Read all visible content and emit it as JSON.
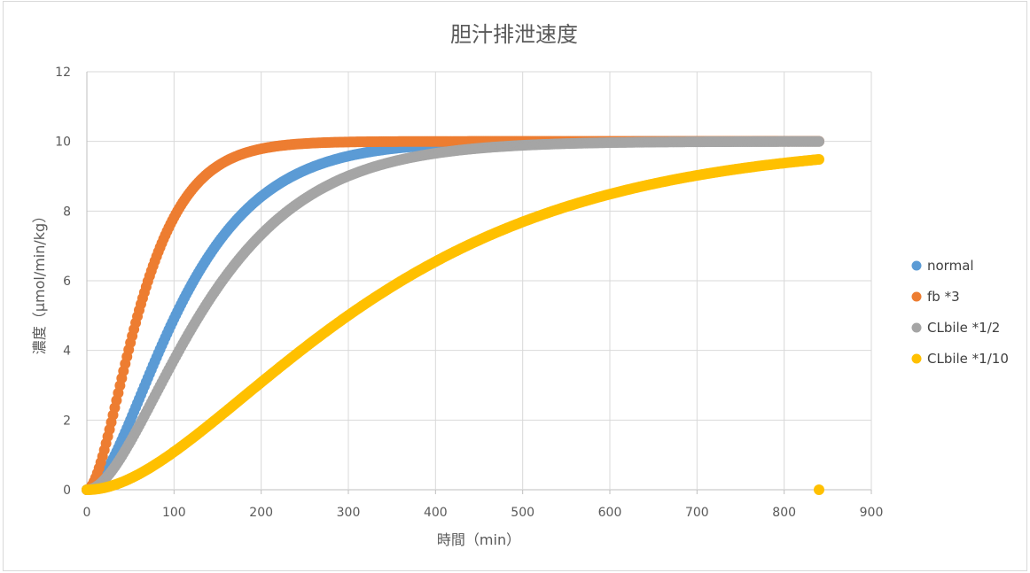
{
  "chart_data": {
    "type": "scatter",
    "title": "胆汁排泄速度",
    "xlabel": "時間（min）",
    "ylabel": "濃度（μmol/min/kg）",
    "xlim": [
      0,
      900
    ],
    "ylim": [
      0,
      12
    ],
    "xticks": [
      0,
      100,
      200,
      300,
      400,
      500,
      600,
      700,
      800,
      900
    ],
    "yticks": [
      0,
      2,
      4,
      6,
      8,
      10,
      12
    ],
    "grid": true,
    "legend_position": "right",
    "series": [
      {
        "name": "normal",
        "color": "#5b9bd5",
        "model": "gamma2",
        "k": 0.0165,
        "x_max": 840
      },
      {
        "name": "fb *3",
        "color": "#ed7d31",
        "model": "gamma2",
        "k": 0.0288,
        "x_max": 840
      },
      {
        "name": "CLbile *1/2",
        "color": "#a5a5a5",
        "model": "gamma2",
        "k": 0.013,
        "x_max": 840
      },
      {
        "name": "CLbile *1/10",
        "color": "#ffc000",
        "model": "gamma2",
        "k": 0.0056,
        "x_max": 840,
        "extra_points": [
          {
            "x": 840,
            "y": 0
          }
        ]
      }
    ]
  }
}
